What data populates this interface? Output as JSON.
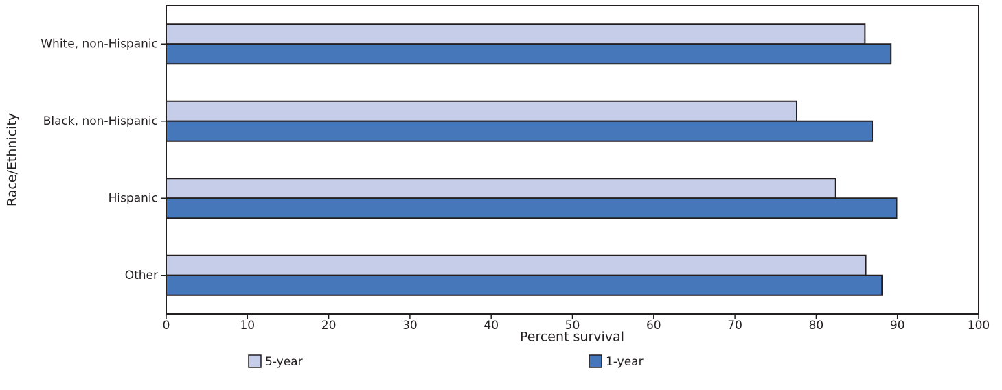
{
  "chart_data": {
    "type": "hbar",
    "categories": [
      "White, non-Hispanic",
      "Black, non-Hispanic",
      "Hispanic",
      "Other"
    ],
    "series": [
      {
        "name": "5-year",
        "color": "#c5cde8",
        "values": [
          86,
          77.6,
          82.4,
          86.1
        ]
      },
      {
        "name": "1-year",
        "color": "#4677bb",
        "values": [
          89.2,
          86.9,
          89.9,
          88.1
        ]
      }
    ],
    "xlabel": "Percent survival",
    "ylabel": "Race/Ethnicity",
    "xlim": [
      0,
      100
    ],
    "xticks": [
      0,
      10,
      20,
      30,
      40,
      50,
      60,
      70,
      80,
      90,
      100
    ],
    "grid": false,
    "legend": "bottom"
  }
}
